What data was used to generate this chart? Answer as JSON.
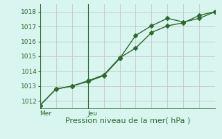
{
  "title": "",
  "xlabel": "Pression niveau de la mer( hPa )",
  "bg_color": "#d8f5f0",
  "grid_color": "#c8c8c8",
  "line_color": "#2d6a2d",
  "ylim": [
    1011.5,
    1018.5
  ],
  "yticks": [
    1012,
    1013,
    1014,
    1015,
    1016,
    1017,
    1018
  ],
  "xlim": [
    0,
    11
  ],
  "xticks": [
    0,
    1,
    2,
    3,
    4,
    5,
    6,
    7,
    8,
    9,
    10,
    11
  ],
  "series1_x": [
    0,
    1,
    2,
    3,
    4,
    5,
    6,
    7,
    8,
    9,
    10,
    11
  ],
  "series1_y": [
    1011.7,
    1012.8,
    1013.0,
    1013.3,
    1013.7,
    1014.85,
    1016.4,
    1017.05,
    1017.55,
    1017.3,
    1017.55,
    1018.0
  ],
  "series2_x": [
    0,
    1,
    2,
    3,
    4,
    5,
    6,
    7,
    8,
    9,
    10,
    11
  ],
  "series2_y": [
    1011.7,
    1012.8,
    1013.0,
    1013.35,
    1013.75,
    1014.9,
    1015.55,
    1016.6,
    1017.05,
    1017.25,
    1017.75,
    1018.0
  ],
  "day_labels": [
    "Mer",
    "Jeu"
  ],
  "day_positions": [
    0,
    3.0
  ],
  "ylabel_fontsize": 6.5,
  "xlabel_fontsize": 8.0,
  "tick_fontsize": 6.5
}
